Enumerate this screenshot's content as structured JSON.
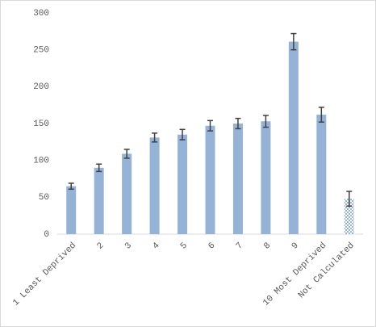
{
  "chart_data": {
    "type": "bar",
    "categories": [
      "1 Least Deprived",
      "2",
      "3",
      "4",
      "5",
      "6",
      "7",
      "8",
      "9",
      "10 Most Deprived",
      "Not Calculated"
    ],
    "values": [
      65,
      90,
      109,
      131,
      135,
      147,
      150,
      153,
      261,
      162,
      48
    ],
    "errors": [
      4,
      5,
      6,
      6,
      7,
      7,
      7,
      8,
      11,
      10,
      10
    ],
    "color": "#95b3d7",
    "fill_styles": [
      "solid",
      "solid",
      "solid",
      "solid",
      "solid",
      "solid",
      "solid",
      "solid",
      "solid",
      "solid",
      "hatched"
    ],
    "error_color": "#404040",
    "ylim": [
      0,
      300
    ],
    "yticks": [
      0,
      50,
      100,
      150,
      200,
      250,
      300
    ],
    "grid": false
  }
}
